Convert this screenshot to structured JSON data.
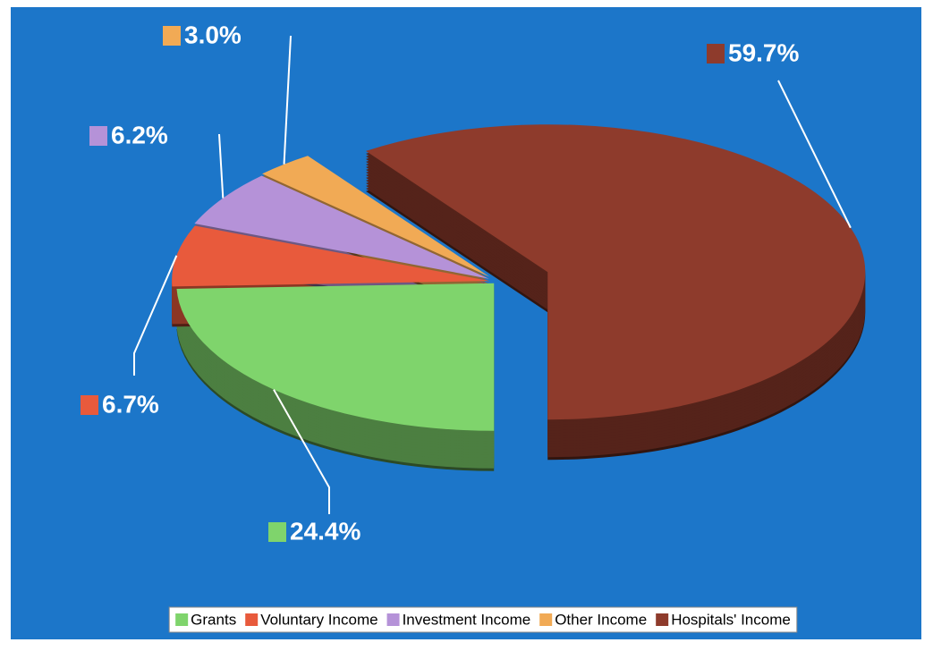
{
  "chart_data": {
    "type": "pie",
    "categories": [
      "Grants",
      "Voluntary Income",
      "Investment Income",
      "Other Income",
      "Hospitals' Income"
    ],
    "values": [
      24.4,
      6.7,
      6.2,
      3.0,
      59.7
    ],
    "value_labels": [
      "24.4%",
      "6.7%",
      "6.2%",
      "3.0%",
      "59.7%"
    ],
    "colors": [
      "#7fd46c",
      "#e85a3c",
      "#b592d8",
      "#f1aa55",
      "#8e3b2c"
    ],
    "legend": "bottom"
  }
}
